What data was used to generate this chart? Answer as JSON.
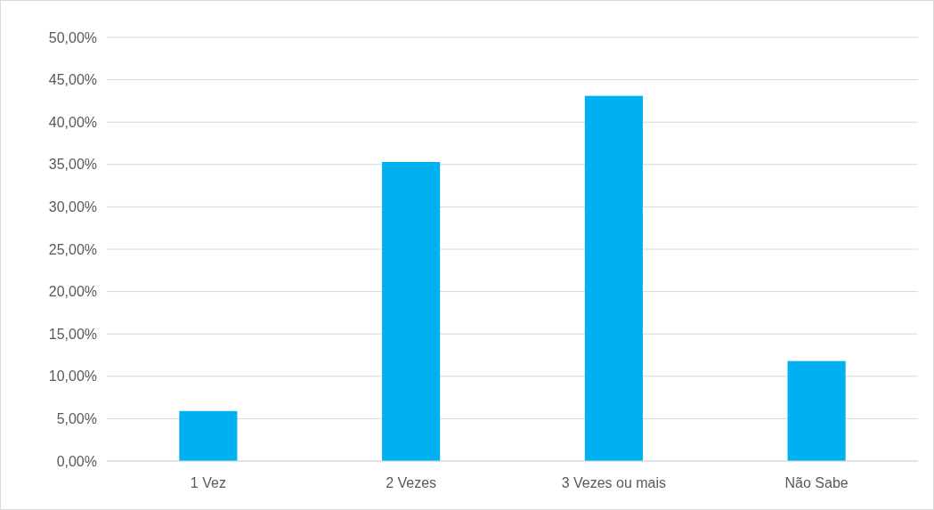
{
  "chart_data": {
    "type": "bar",
    "categories": [
      "1 Vez",
      "2 Vezes",
      "3 Vezes ou mais",
      "Não Sabe"
    ],
    "values": [
      5.9,
      35.3,
      43.1,
      11.8
    ],
    "color": "#00b0f0",
    "ylim": [
      0,
      50
    ],
    "yticks": [
      {
        "value": 0,
        "label": "0,00%"
      },
      {
        "value": 5,
        "label": "5,00%"
      },
      {
        "value": 10,
        "label": "10,00%"
      },
      {
        "value": 15,
        "label": "15,00%"
      },
      {
        "value": 20,
        "label": "20,00%"
      },
      {
        "value": 25,
        "label": "25,00%"
      },
      {
        "value": 30,
        "label": "30,00%"
      },
      {
        "value": 35,
        "label": "35,00%"
      },
      {
        "value": 40,
        "label": "40,00%"
      },
      {
        "value": 45,
        "label": "45,00%"
      },
      {
        "value": 50,
        "label": "50,00%"
      }
    ],
    "grid": "y"
  }
}
